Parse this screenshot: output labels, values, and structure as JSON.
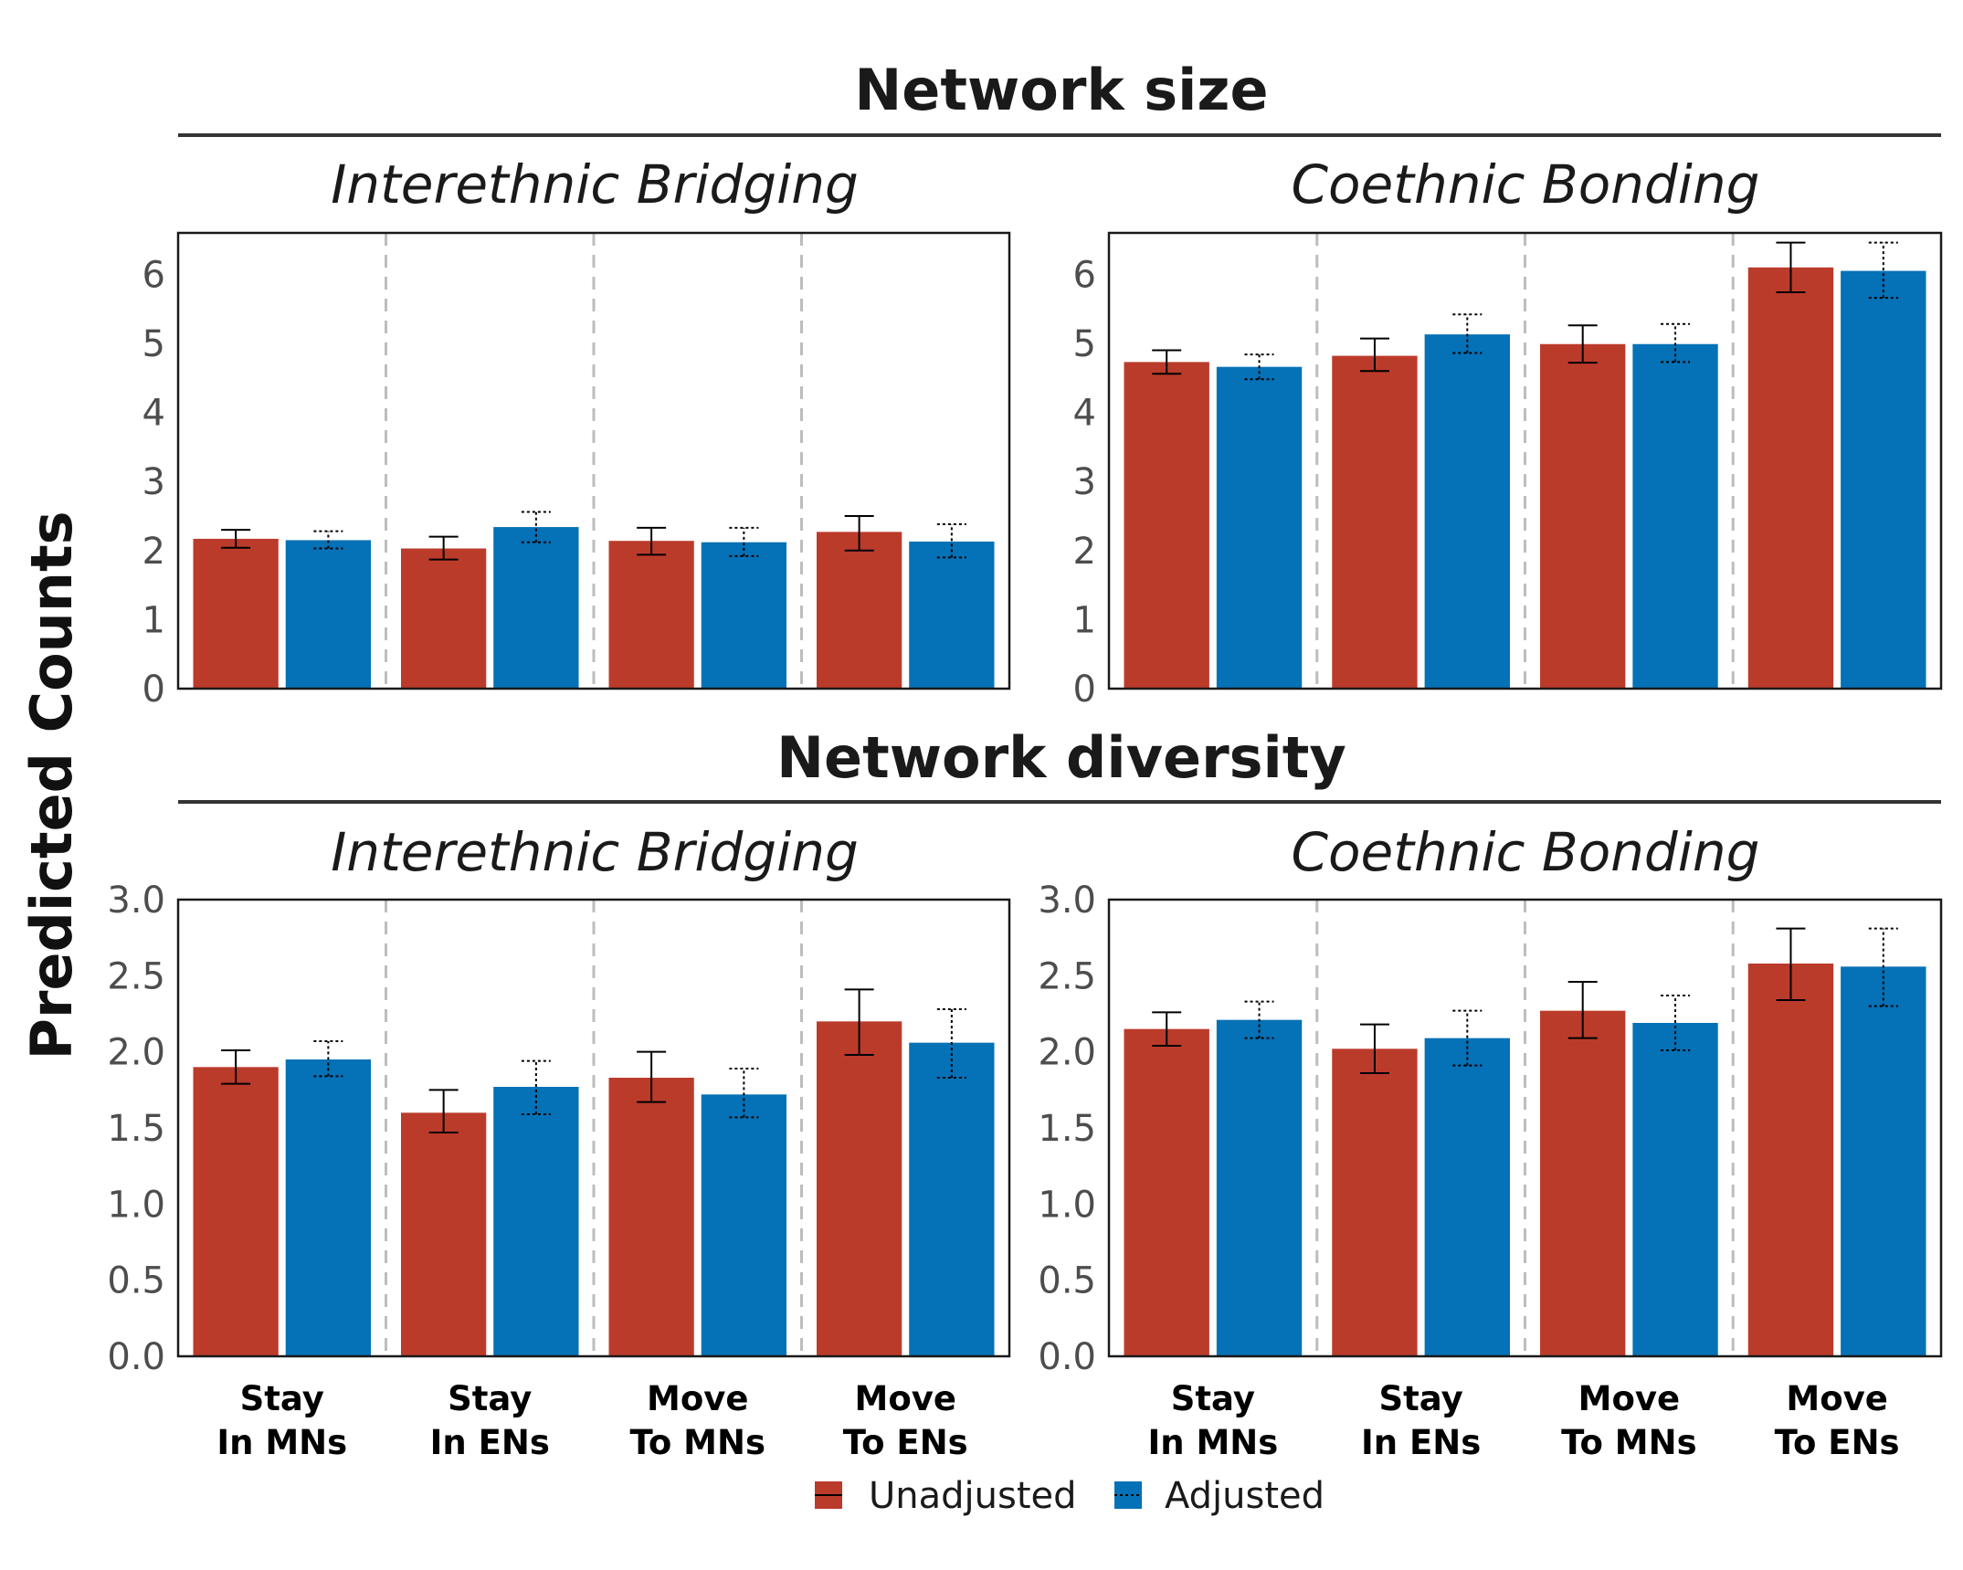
{
  "figure": {
    "ylabel": "Predicted Counts",
    "sections": [
      {
        "title": "Network size"
      },
      {
        "title": "Network diversity"
      }
    ],
    "legend": {
      "position": "bottom",
      "items": [
        {
          "label": "Unadjusted",
          "color": "#bb3b2b",
          "errorbar": "solid"
        },
        {
          "label": "Adjusted",
          "color": "#0571b6",
          "errorbar": "dotted"
        }
      ]
    }
  },
  "chart_data": [
    {
      "type": "bar",
      "section": "Network size",
      "title": "Interethnic Bridging",
      "categories": [
        "Stay\nIn MNs",
        "Stay\nIn ENs",
        "Move\nTo MNs",
        "Move\nTo ENs"
      ],
      "ylim": [
        0,
        6.6
      ],
      "yticks": [
        "0",
        "1",
        "2",
        "3",
        "4",
        "5",
        "6"
      ],
      "show_xticks": false,
      "series": [
        {
          "name": "Unadjusted",
          "values": [
            2.17,
            2.03,
            2.14,
            2.27
          ],
          "ci_low": [
            2.04,
            1.87,
            1.94,
            2.0
          ],
          "ci_high": [
            2.3,
            2.2,
            2.33,
            2.5
          ]
        },
        {
          "name": "Adjusted",
          "values": [
            2.15,
            2.34,
            2.12,
            2.13
          ],
          "ci_low": [
            2.03,
            2.12,
            1.92,
            1.9
          ],
          "ci_high": [
            2.28,
            2.56,
            2.33,
            2.38
          ]
        }
      ]
    },
    {
      "type": "bar",
      "section": "Network size",
      "title": "Coethnic Bonding",
      "categories": [
        "Stay\nIn MNs",
        "Stay\nIn ENs",
        "Move\nTo MNs",
        "Move\nTo ENs"
      ],
      "ylim": [
        0,
        6.6
      ],
      "yticks": [
        "0",
        "1",
        "2",
        "3",
        "4",
        "5",
        "6"
      ],
      "show_xticks": false,
      "series": [
        {
          "name": "Unadjusted",
          "values": [
            4.73,
            4.82,
            4.99,
            6.1
          ],
          "ci_low": [
            4.56,
            4.6,
            4.72,
            5.74
          ],
          "ci_high": [
            4.9,
            5.07,
            5.26,
            6.46
          ]
        },
        {
          "name": "Adjusted",
          "values": [
            4.66,
            5.13,
            4.99,
            6.05
          ],
          "ci_low": [
            4.48,
            4.86,
            4.73,
            5.66
          ],
          "ci_high": [
            4.84,
            5.42,
            5.28,
            6.46
          ]
        }
      ]
    },
    {
      "type": "bar",
      "section": "Network diversity",
      "title": "Interethnic Bridging",
      "categories": [
        "Stay\nIn MNs",
        "Stay\nIn ENs",
        "Move\nTo MNs",
        "Move\nTo ENs"
      ],
      "ylim": [
        0,
        3.0
      ],
      "yticks": [
        "0.0",
        "0.5",
        "1.0",
        "1.5",
        "2.0",
        "2.5",
        "3.0"
      ],
      "show_xticks": true,
      "series": [
        {
          "name": "Unadjusted",
          "values": [
            1.9,
            1.6,
            1.83,
            2.2
          ],
          "ci_low": [
            1.79,
            1.47,
            1.67,
            1.98
          ],
          "ci_high": [
            2.01,
            1.75,
            2.0,
            2.41
          ]
        },
        {
          "name": "Adjusted",
          "values": [
            1.95,
            1.77,
            1.72,
            2.06
          ],
          "ci_low": [
            1.84,
            1.59,
            1.57,
            1.83
          ],
          "ci_high": [
            2.07,
            1.94,
            1.89,
            2.28
          ]
        }
      ]
    },
    {
      "type": "bar",
      "section": "Network diversity",
      "title": "Coethnic Bonding",
      "categories": [
        "Stay\nIn MNs",
        "Stay\nIn ENs",
        "Move\nTo MNs",
        "Move\nTo ENs"
      ],
      "ylim": [
        0,
        3.0
      ],
      "yticks": [
        "0.0",
        "0.5",
        "1.0",
        "1.5",
        "2.0",
        "2.5",
        "3.0"
      ],
      "show_xticks": true,
      "series": [
        {
          "name": "Unadjusted",
          "values": [
            2.15,
            2.02,
            2.27,
            2.58
          ],
          "ci_low": [
            2.04,
            1.86,
            2.09,
            2.34
          ],
          "ci_high": [
            2.26,
            2.18,
            2.46,
            2.81
          ]
        },
        {
          "name": "Adjusted",
          "values": [
            2.21,
            2.09,
            2.19,
            2.56
          ],
          "ci_low": [
            2.09,
            1.91,
            2.01,
            2.3
          ],
          "ci_high": [
            2.33,
            2.27,
            2.37,
            2.81
          ]
        }
      ]
    }
  ]
}
